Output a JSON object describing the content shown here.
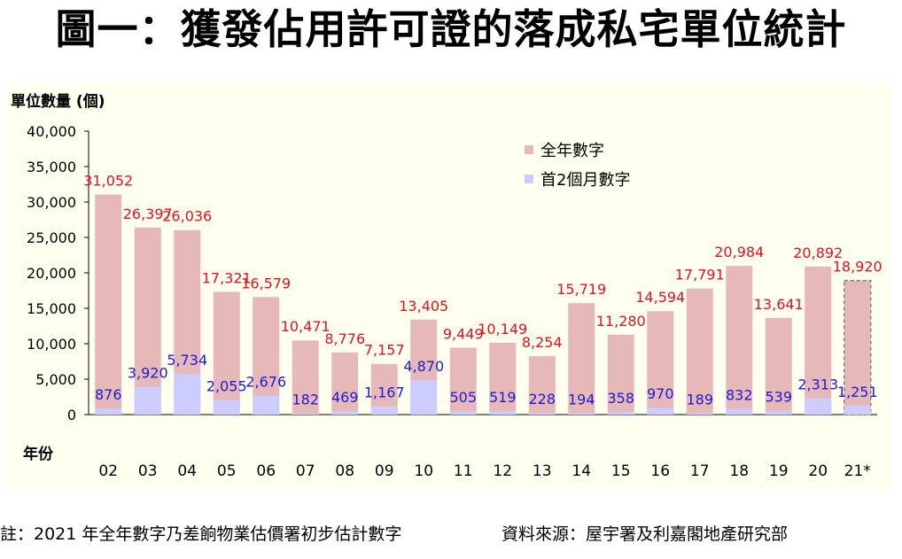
{
  "title": "圖一：獲發佔用許可證的落成私宅單位統計",
  "footnote": "註：2021 年全年數字乃差餉物業估價署初步估計數字",
  "source": "資料來源：屋宇署及利嘉閣地產研究部",
  "chart_data": {
    "type": "bar",
    "ylabel": "單位數量 (個)",
    "xlabel": "年份",
    "ylim": [
      0,
      40000
    ],
    "yticks": [
      0,
      5000,
      10000,
      15000,
      20000,
      25000,
      30000,
      35000,
      40000
    ],
    "ytick_labels": [
      "0",
      "5,000",
      "10,000",
      "15,000",
      "20,000",
      "25,000",
      "30,000",
      "35,000",
      "40,000"
    ],
    "categories": [
      "02",
      "03",
      "04",
      "05",
      "06",
      "07",
      "08",
      "09",
      "10",
      "11",
      "12",
      "13",
      "14",
      "15",
      "16",
      "17",
      "18",
      "19",
      "20",
      "21*"
    ],
    "grid": false,
    "legend_position": "top-right",
    "series": [
      {
        "name": "全年數字",
        "color": "#E6B9B8",
        "label_color": "#E8101A",
        "values": [
          31052,
          26397,
          26036,
          17321,
          16579,
          10471,
          8776,
          7157,
          13405,
          9449,
          10149,
          8254,
          15719,
          11280,
          14594,
          17791,
          20984,
          13641,
          20892,
          18920
        ],
        "labels": [
          "31,052",
          "26,397",
          "26,036",
          "17,321",
          "16,579",
          "10,471",
          "8,776",
          "7,157",
          "13,405",
          "9,449",
          "10,149",
          "8,254",
          "15,719",
          "11,280",
          "14,594",
          "17,791",
          "20,984",
          "13,641",
          "20,892",
          "18,920"
        ]
      },
      {
        "name": "首2個月數字",
        "color": "#CCCCFF",
        "label_color": "#1A1ADC",
        "values": [
          876,
          3920,
          5734,
          2055,
          2676,
          182,
          469,
          1167,
          4870,
          505,
          519,
          228,
          194,
          358,
          970,
          189,
          832,
          539,
          2313,
          1251
        ],
        "labels": [
          "876",
          "3,920",
          "5,734",
          "2,055",
          "2,676",
          "182",
          "469",
          "1,167",
          "4,870",
          "505",
          "519",
          "228",
          "194",
          "358",
          "970",
          "189",
          "832",
          "539",
          "2,313",
          "1,251"
        ]
      }
    ],
    "estimated_category": "21*"
  }
}
